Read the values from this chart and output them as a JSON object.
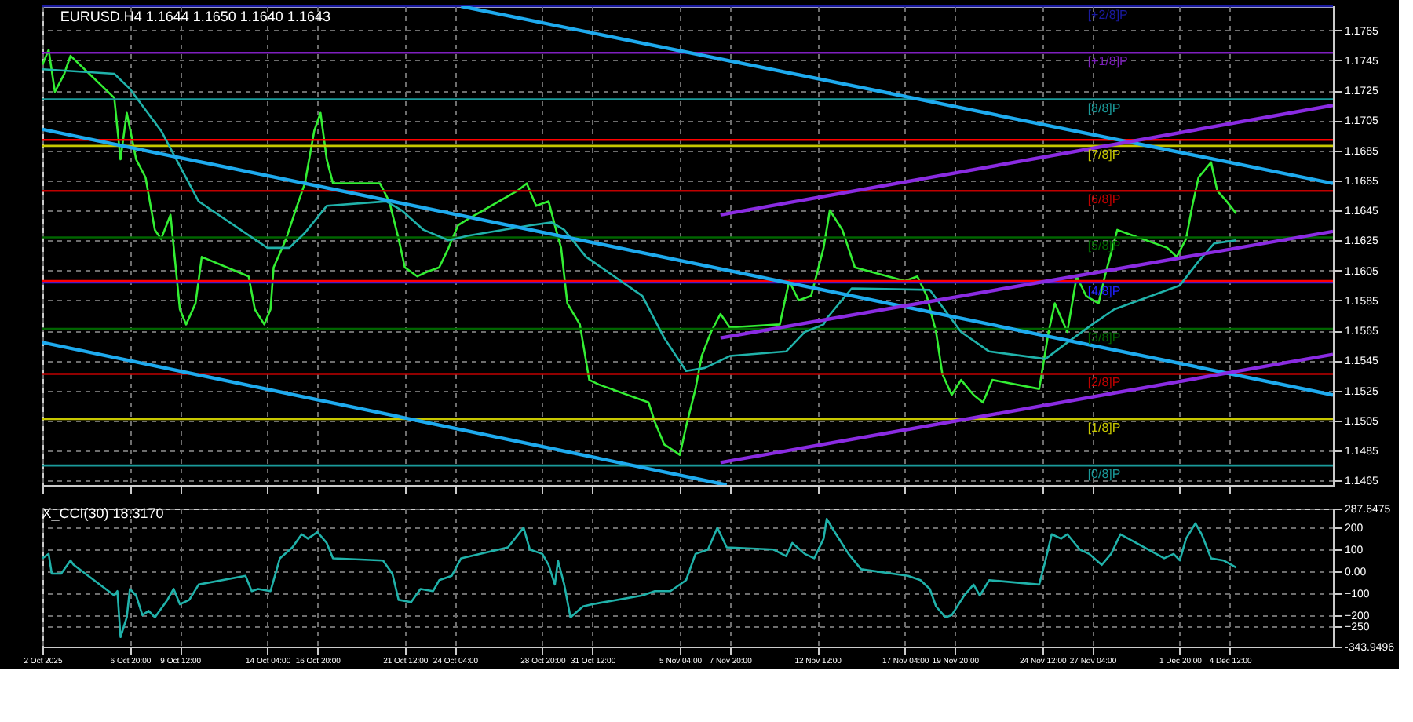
{
  "chart_data": [
    {
      "type": "line",
      "title": "EURUSD.H4  1.1644 1.1650 1.1640 1.1643",
      "xlim": [
        "2025-10-02T04:00",
        "2025-12-10T00:00"
      ],
      "ylim": [
        1.1462,
        1.1781
      ],
      "xticks": [
        {
          "value": "2025-10-02T04:00",
          "label": null
        },
        {
          "value": "2025-10-06T20:00",
          "label": null
        },
        {
          "value": "2025-10-09T12:00",
          "label": null
        },
        {
          "value": "2025-10-14T04:00",
          "label": null
        },
        {
          "value": "2025-10-16T20:00",
          "label": null
        },
        {
          "value": "2025-10-21T12:00",
          "label": null
        },
        {
          "value": "2025-10-24T04:00",
          "label": null
        },
        {
          "value": "2025-10-28T20:00",
          "label": null
        },
        {
          "value": "2025-10-31T12:00",
          "label": null
        },
        {
          "value": "2025-11-05T04:00",
          "label": null
        },
        {
          "value": "2025-11-07T20:00",
          "label": null
        },
        {
          "value": "2025-11-12T12:00",
          "label": null
        },
        {
          "value": "2025-11-17T04:00",
          "label": null
        },
        {
          "value": "2025-11-19T20:00",
          "label": null
        },
        {
          "value": "2025-11-24T12:00",
          "label": null
        },
        {
          "value": "2025-11-27T04:00",
          "label": null
        },
        {
          "value": "2025-12-01T20:00",
          "label": null
        },
        {
          "value": "2025-12-04T12:00",
          "label": null
        }
      ],
      "yticks": [
        1.1465,
        1.1485,
        1.1505,
        1.1525,
        1.1545,
        1.1565,
        1.1585,
        1.1605,
        1.1625,
        1.1645,
        1.1665,
        1.1685,
        1.1705,
        1.1725,
        1.1745,
        1.1765
      ],
      "tick_labels": "y",
      "grid": true,
      "line_style": "solid",
      "ref_lines": [
        {
          "axis": "y",
          "value": 1.1781,
          "label": "[+2/8]P",
          "color": "#1a1aa0"
        },
        {
          "axis": "y",
          "value": 1.175,
          "label": "[+1/8]P",
          "color": "#7f1fbf"
        },
        {
          "axis": "y",
          "value": 1.1719,
          "label": "[8/8]P",
          "color": "#1a9a9a"
        },
        {
          "axis": "y",
          "value": 1.1688,
          "label": "[7/8]P",
          "color": "#c8c800"
        },
        {
          "axis": "y",
          "value": 1.1658,
          "label": "[6/8]P",
          "color": "#c00000"
        },
        {
          "axis": "y",
          "value": 1.1627,
          "label": "[5/8]P",
          "color": "#006400"
        },
        {
          "axis": "y",
          "value": 1.1597,
          "label": "[4/8]P",
          "color": "#2020ff"
        },
        {
          "axis": "y",
          "value": 1.1566,
          "label": "[3/8]P",
          "color": "#006400"
        },
        {
          "axis": "y",
          "value": 1.1536,
          "label": "[2/8]P",
          "color": "#c00000"
        },
        {
          "axis": "y",
          "value": 1.1506,
          "label": "[1/8]P",
          "color": "#c8c800"
        },
        {
          "axis": "y",
          "value": 1.1475,
          "label": "[0/8]P",
          "color": "#1a9a9a"
        },
        {
          "axis": "y",
          "value": 1.1692,
          "color": "#ff0000"
        },
        {
          "axis": "y",
          "value": 1.1598,
          "color": "#ff0000"
        }
      ],
      "series": [
        {
          "color": "#33ee33",
          "x": [
            "2025-10-02T04:00",
            "2025-10-02T12:00",
            "2025-10-02T20:00",
            "2025-10-03T08:00",
            "2025-10-03T16:00",
            "2025-10-06T00:00",
            "2025-10-06T08:00",
            "2025-10-06T16:00",
            "2025-10-07T04:00",
            "2025-10-07T16:00",
            "2025-10-08T04:00",
            "2025-10-08T12:00",
            "2025-10-09T00:00",
            "2025-10-09T12:00",
            "2025-10-09T20:00",
            "2025-10-10T08:00",
            "2025-10-10T16:00",
            "2025-10-13T04:00",
            "2025-10-13T12:00",
            "2025-10-14T00:00",
            "2025-10-14T08:00",
            "2025-10-14T12:00",
            "2025-10-15T04:00",
            "2025-10-15T16:00",
            "2025-10-16T04:00",
            "2025-10-16T16:00",
            "2025-10-17T00:00",
            "2025-10-17T08:00",
            "2025-10-17T16:00",
            "2025-10-20T04:00",
            "2025-10-20T16:00",
            "2025-10-21T04:00",
            "2025-10-21T12:00",
            "2025-10-22T04:00",
            "2025-10-22T16:00",
            "2025-10-23T08:00",
            "2025-10-23T20:00",
            "2025-10-24T08:00",
            "2025-10-24T20:00",
            "2025-10-27T12:00",
            "2025-10-28T00:00",
            "2025-10-28T12:00",
            "2025-10-29T04:00",
            "2025-10-29T12:00",
            "2025-10-29T20:00",
            "2025-10-30T04:00",
            "2025-10-30T20:00",
            "2025-10-31T08:00",
            "2025-10-31T20:00",
            "2025-11-03T12:00",
            "2025-11-03T20:00",
            "2025-11-04T08:00",
            "2025-11-04T20:00",
            "2025-11-05T04:00",
            "2025-11-05T12:00",
            "2025-11-06T00:00",
            "2025-11-06T08:00",
            "2025-11-06T20:00",
            "2025-11-07T08:00",
            "2025-11-07T20:00",
            "2025-11-10T12:00",
            "2025-11-11T00:00",
            "2025-11-11T12:00",
            "2025-11-12T04:00",
            "2025-11-12T20:00",
            "2025-11-13T04:00",
            "2025-11-13T20:00",
            "2025-11-14T12:00",
            "2025-11-17T04:00",
            "2025-11-17T20:00",
            "2025-11-18T08:00",
            "2025-11-18T20:00",
            "2025-11-19T04:00",
            "2025-11-19T16:00",
            "2025-11-20T04:00",
            "2025-11-20T20:00",
            "2025-11-21T08:00",
            "2025-11-21T20:00",
            "2025-11-24T08:00",
            "2025-11-24T20:00",
            "2025-11-25T04:00",
            "2025-11-25T20:00",
            "2025-11-26T08:00",
            "2025-11-26T20:00",
            "2025-11-27T12:00",
            "2025-11-27T20:00",
            "2025-11-28T12:00",
            "2025-12-01T04:00",
            "2025-12-01T16:00",
            "2025-12-02T04:00",
            "2025-12-02T12:00",
            "2025-12-02T20:00",
            "2025-12-03T12:00",
            "2025-12-03T20:00",
            "2025-12-04T08:00",
            "2025-12-04T20:00"
          ],
          "values": [
            1.1742,
            1.1752,
            1.1724,
            1.1736,
            1.1748,
            1.172,
            1.1679,
            1.171,
            1.1679,
            1.1667,
            1.1632,
            1.1626,
            1.1642,
            1.1579,
            1.1569,
            1.1583,
            1.1614,
            1.1601,
            1.1579,
            1.1569,
            1.1579,
            1.1607,
            1.1626,
            1.1645,
            1.1663,
            1.1698,
            1.171,
            1.1679,
            1.1663,
            1.1663,
            1.1651,
            1.1626,
            1.1607,
            1.1601,
            1.1604,
            1.1607,
            1.162,
            1.1635,
            1.1639,
            1.1658,
            1.1663,
            1.1648,
            1.1651,
            1.1635,
            1.162,
            1.1583,
            1.1569,
            1.1532,
            1.1529,
            1.1517,
            1.1504,
            1.1489,
            1.1485,
            1.1482,
            1.1501,
            1.1526,
            1.1548,
            1.1564,
            1.1576,
            1.1567,
            1.1569,
            1.1598,
            1.1585,
            1.1588,
            1.162,
            1.1645,
            1.1632,
            1.1607,
            1.1598,
            1.1601,
            1.1588,
            1.1564,
            1.1536,
            1.1522,
            1.1532,
            1.1522,
            1.1517,
            1.1532,
            1.1526,
            1.1564,
            1.1583,
            1.1564,
            1.1601,
            1.1588,
            1.1583,
            1.1601,
            1.1632,
            1.162,
            1.1614,
            1.1626,
            1.1648,
            1.1667,
            1.1677,
            1.1658,
            1.1651,
            1.1643
          ]
        },
        {
          "color": "#20b2aa",
          "x": [
            "2025-10-02T04:00",
            "2025-10-06T00:00",
            "2025-10-06T20:00",
            "2025-10-08T12:00",
            "2025-10-10T12:00",
            "2025-10-14T04:00",
            "2025-10-15T08:00",
            "2025-10-16T04:00",
            "2025-10-17T08:00",
            "2025-10-20T12:00",
            "2025-10-21T08:00",
            "2025-10-22T12:00",
            "2025-10-23T20:00",
            "2025-10-24T20:00",
            "2025-10-28T04:00",
            "2025-10-29T08:00",
            "2025-10-30T00:00",
            "2025-10-31T04:00",
            "2025-11-03T04:00",
            "2025-11-04T08:00",
            "2025-11-05T12:00",
            "2025-11-06T12:00",
            "2025-11-07T20:00",
            "2025-11-10T20:00",
            "2025-11-11T20:00",
            "2025-11-12T20:00",
            "2025-11-13T00:00",
            "2025-11-14T08:00",
            "2025-11-18T12:00",
            "2025-11-20T04:00",
            "2025-11-21T16:00",
            "2025-11-24T16:00",
            "2025-11-25T20:00",
            "2025-11-27T04:00",
            "2025-11-28T08:00",
            "2025-12-01T20:00",
            "2025-12-02T20:00",
            "2025-12-03T16:00",
            "2025-12-04T20:00"
          ],
          "values": [
            1.1739,
            1.1736,
            1.1726,
            1.1698,
            1.1651,
            1.162,
            1.162,
            1.163,
            1.1648,
            1.1651,
            1.1645,
            1.1632,
            1.1625,
            1.1628,
            1.1635,
            1.1637,
            1.1632,
            1.1614,
            1.1588,
            1.156,
            1.1538,
            1.154,
            1.1548,
            1.1551,
            1.1564,
            1.1569,
            1.1573,
            1.1593,
            1.1592,
            1.1564,
            1.1551,
            1.1546,
            1.1557,
            1.1569,
            1.1579,
            1.1595,
            1.1611,
            1.1623,
            1.1625
          ]
        },
        {
          "color": "#1eaaee",
          "x": [
            "2025-10-24T12:00",
            "2025-12-10T00:00"
          ],
          "values": [
            1.1781,
            1.1663
          ]
        },
        {
          "color": "#1eaaee",
          "x": [
            "2025-10-02T04:00",
            "2025-12-10T00:00"
          ],
          "values": [
            1.1699,
            1.1522
          ]
        },
        {
          "color": "#1eaaee",
          "x": [
            "2025-10-02T04:00",
            "2025-11-07T16:00"
          ],
          "values": [
            1.1557,
            1.1462
          ]
        },
        {
          "color": "#8a2be2",
          "x": [
            "2025-11-07T08:00",
            "2025-12-10T00:00"
          ],
          "values": [
            1.1642,
            1.1715
          ]
        },
        {
          "color": "#8a2be2",
          "x": [
            "2025-11-07T08:00",
            "2025-12-10T00:00"
          ],
          "values": [
            1.156,
            1.1631
          ]
        },
        {
          "color": "#8a2be2",
          "x": [
            "2025-11-07T08:00",
            "2025-12-10T00:00"
          ],
          "values": [
            1.1477,
            1.1549
          ]
        }
      ]
    },
    {
      "type": "line",
      "title": "X_CCI(30) 18.3170",
      "xlim": [
        "2025-10-02T04:00",
        "2025-12-10T00:00"
      ],
      "ylim": [
        -343.9496,
        287.6475
      ],
      "xticks": [
        {
          "value": "2025-10-02T04:00",
          "label": "2 Oct 2025"
        },
        {
          "value": "2025-10-06T20:00",
          "label": "6 Oct 20:00"
        },
        {
          "value": "2025-10-09T12:00",
          "label": "9 Oct 12:00"
        },
        {
          "value": "2025-10-14T04:00",
          "label": "14 Oct 04:00"
        },
        {
          "value": "2025-10-16T20:00",
          "label": "16 Oct 20:00"
        },
        {
          "value": "2025-10-21T12:00",
          "label": "21 Oct 12:00"
        },
        {
          "value": "2025-10-24T04:00",
          "label": "24 Oct 04:00"
        },
        {
          "value": "2025-10-28T20:00",
          "label": "28 Oct 20:00"
        },
        {
          "value": "2025-10-31T12:00",
          "label": "31 Oct 12:00"
        },
        {
          "value": "2025-11-05T04:00",
          "label": "5 Nov 04:00"
        },
        {
          "value": "2025-11-07T20:00",
          "label": "7 Nov 20:00"
        },
        {
          "value": "2025-11-12T12:00",
          "label": "12 Nov 12:00"
        },
        {
          "value": "2025-11-17T04:00",
          "label": "17 Nov 04:00"
        },
        {
          "value": "2025-11-19T20:00",
          "label": "19 Nov 20:00"
        },
        {
          "value": "2025-11-24T12:00",
          "label": "24 Nov 12:00"
        },
        {
          "value": "2025-11-27T04:00",
          "label": "27 Nov 04:00"
        },
        {
          "value": "2025-12-01T20:00",
          "label": "1 Dec 20:00"
        },
        {
          "value": "2025-12-04T12:00",
          "label": "4 Dec 12:00"
        }
      ],
      "yticks": [
        {
          "value": -343.9496,
          "label": "-343.9496"
        },
        -250,
        -200,
        -100,
        {
          "value": 0,
          "label": "0.00"
        },
        100,
        200,
        {
          "value": 287.6475,
          "label": "287.6475"
        }
      ],
      "grid": true,
      "line_style": "solid",
      "series": [
        {
          "color": "#20b2aa",
          "x": [
            "2025-10-02T04:00",
            "2025-10-02T12:00",
            "2025-10-02T16:00",
            "2025-10-03T04:00",
            "2025-10-03T16:00",
            "2025-10-03T20:00",
            "2025-10-06T00:00",
            "2025-10-06T04:00",
            "2025-10-06T08:00",
            "2025-10-06T16:00",
            "2025-10-06T20:00",
            "2025-10-07T04:00",
            "2025-10-07T12:00",
            "2025-10-07T20:00",
            "2025-10-08T04:00",
            "2025-10-08T20:00",
            "2025-10-09T04:00",
            "2025-10-09T12:00",
            "2025-10-10T00:00",
            "2025-10-10T12:00",
            "2025-10-13T00:00",
            "2025-10-13T08:00",
            "2025-10-13T16:00",
            "2025-10-14T08:00",
            "2025-10-14T12:00",
            "2025-10-14T20:00",
            "2025-10-15T12:00",
            "2025-10-16T00:00",
            "2025-10-16T08:00",
            "2025-10-16T20:00",
            "2025-10-17T08:00",
            "2025-10-17T16:00",
            "2025-10-20T08:00",
            "2025-10-20T20:00",
            "2025-10-21T04:00",
            "2025-10-21T20:00",
            "2025-10-22T08:00",
            "2025-10-23T00:00",
            "2025-10-23T08:00",
            "2025-10-24T00:00",
            "2025-10-24T12:00",
            "2025-10-27T00:00",
            "2025-10-27T20:00",
            "2025-10-28T04:00",
            "2025-10-28T20:00",
            "2025-10-29T04:00",
            "2025-10-29T12:00",
            "2025-10-29T16:00",
            "2025-10-30T00:00",
            "2025-10-30T08:00",
            "2025-10-31T00:00",
            "2025-10-31T12:00",
            "2025-11-03T04:00",
            "2025-11-03T20:00",
            "2025-11-04T16:00",
            "2025-11-05T12:00",
            "2025-11-06T00:00",
            "2025-11-06T16:00",
            "2025-11-07T04:00",
            "2025-11-07T16:00",
            "2025-11-10T04:00",
            "2025-11-10T20:00",
            "2025-11-11T04:00",
            "2025-11-11T20:00",
            "2025-11-12T08:00",
            "2025-11-12T20:00",
            "2025-11-13T00:00",
            "2025-11-13T12:00",
            "2025-11-14T04:00",
            "2025-11-14T20:00",
            "2025-11-17T08:00",
            "2025-11-18T00:00",
            "2025-11-18T12:00",
            "2025-11-18T20:00",
            "2025-11-19T08:00",
            "2025-11-19T16:00",
            "2025-11-20T08:00",
            "2025-11-20T20:00",
            "2025-11-21T04:00",
            "2025-11-21T16:00",
            "2025-11-24T08:00",
            "2025-11-24T16:00",
            "2025-11-25T00:00",
            "2025-11-25T12:00",
            "2025-11-25T20:00",
            "2025-11-26T12:00",
            "2025-11-27T00:00",
            "2025-11-27T16:00",
            "2025-11-28T04:00",
            "2025-11-28T16:00",
            "2025-12-01T00:00",
            "2025-12-01T12:00",
            "2025-12-01T20:00",
            "2025-12-02T04:00",
            "2025-12-02T16:00",
            "2025-12-03T00:00",
            "2025-12-03T12:00",
            "2025-12-04T04:00",
            "2025-12-04T20:00"
          ],
          "values": [
            60,
            80,
            -10,
            -10,
            50,
            30,
            -110,
            -90,
            -300,
            -210,
            -80,
            -110,
            -200,
            -180,
            -210,
            -130,
            -80,
            -150,
            -130,
            -60,
            -20,
            -90,
            -80,
            -90,
            -40,
            60,
            110,
            170,
            150,
            180,
            130,
            60,
            50,
            -10,
            -130,
            -140,
            -80,
            -90,
            -40,
            -20,
            60,
            110,
            200,
            100,
            80,
            30,
            -60,
            50,
            -60,
            -210,
            -160,
            -150,
            -110,
            -90,
            -90,
            -40,
            80,
            100,
            200,
            110,
            100,
            70,
            130,
            80,
            60,
            150,
            240,
            170,
            80,
            10,
            -20,
            -40,
            -80,
            -160,
            -210,
            -200,
            -110,
            -60,
            -110,
            -40,
            -60,
            50,
            170,
            150,
            170,
            100,
            80,
            30,
            80,
            170,
            60,
            80,
            50,
            150,
            220,
            170,
            60,
            50,
            18
          ]
        }
      ]
    }
  ]
}
